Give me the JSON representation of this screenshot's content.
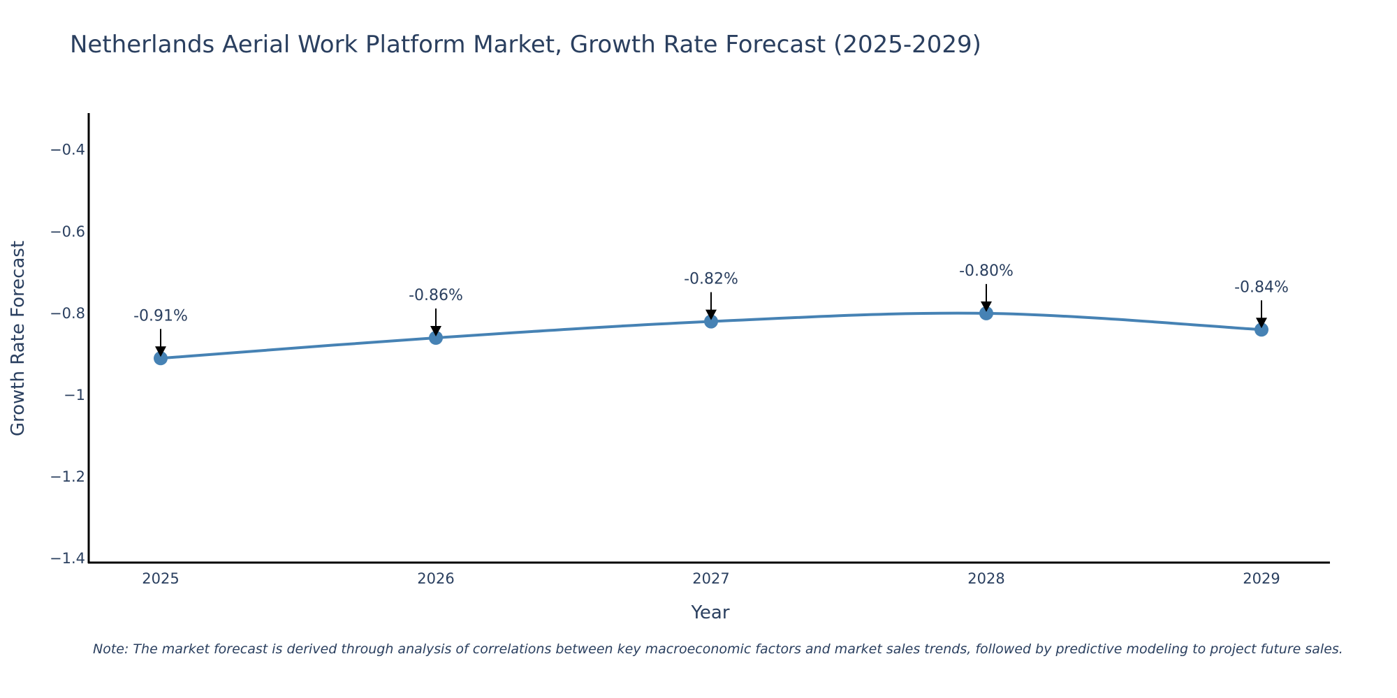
{
  "chart_data": {
    "type": "line",
    "title": "Netherlands Aerial Work Platform Market, Growth Rate Forecast (2025-2029)",
    "xlabel": "Year",
    "ylabel": "Growth Rate Forecast",
    "x": [
      "2025",
      "2026",
      "2027",
      "2028",
      "2029"
    ],
    "series": [
      {
        "name": "Growth Rate Forecast",
        "values": [
          -0.91,
          -0.86,
          -0.82,
          -0.8,
          -0.84
        ],
        "color": "#4682b4"
      }
    ],
    "data_labels": [
      "-0.91%",
      "-0.86%",
      "-0.82%",
      "-0.80%",
      "-0.84%"
    ],
    "ylim": [
      -1.41,
      -0.31
    ],
    "yticks": [
      -0.4,
      -0.6,
      -0.8,
      -1,
      -1.2,
      -1.4
    ],
    "ytick_labels": [
      "−0.4",
      "−0.6",
      "−0.8",
      "−1",
      "−1.2",
      "−1.4"
    ],
    "grid": false,
    "line_shape": "spline",
    "note": "Note: The market forecast is derived through analysis of correlations between key macroeconomic factors and market sales trends, followed by predictive modeling to project future sales."
  }
}
